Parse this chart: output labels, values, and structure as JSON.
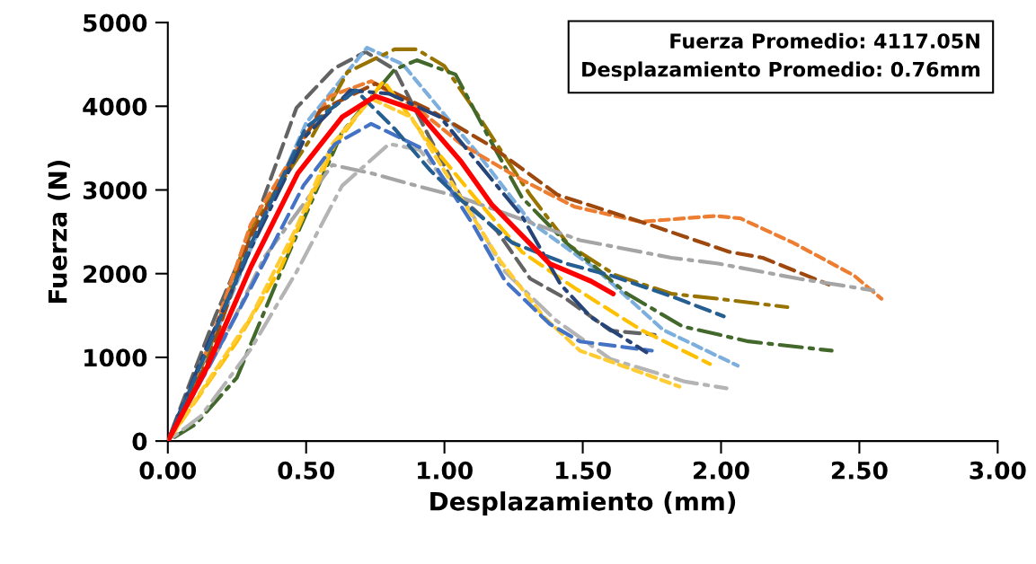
{
  "chart_data": {
    "type": "line",
    "xlabel": "Desplazamiento (mm)",
    "ylabel": "Fuerza (N)",
    "annotations": [
      "Fuerza Promedio: 4117.05N",
      "Desplazamiento Promedio: 0.76mm"
    ],
    "xlim": [
      0,
      3
    ],
    "ylim": [
      0,
      5000
    ],
    "xticks": [
      {
        "value": 0,
        "label": "0.00"
      },
      {
        "value": 0.5,
        "label": "0.50"
      },
      {
        "value": 1,
        "label": "1.00"
      },
      {
        "value": 1.5,
        "label": "1.50"
      },
      {
        "value": 2,
        "label": "2.00"
      },
      {
        "value": 2.5,
        "label": "2.50"
      },
      {
        "value": 3,
        "label": "3.00"
      }
    ],
    "yticks": [
      0,
      1000,
      2000,
      3000,
      4000,
      5000
    ],
    "grid": false,
    "legend": false,
    "marker": "none",
    "series": [
      {
        "color": "#636363",
        "line_style": "dashed",
        "x": [
          0,
          0.17,
          0.3,
          0.465,
          0.6,
          0.715,
          0.82,
          0.93,
          1.06,
          1.19,
          1.31,
          1.44,
          1.6,
          1.76
        ],
        "values": [
          0,
          1480,
          2480,
          3980,
          4450,
          4650,
          4440,
          3730,
          2910,
          2510,
          1940,
          1700,
          1320,
          1270
        ]
      },
      {
        "color": "#7cafdd",
        "line_style": "dotted",
        "x": [
          0,
          0.15,
          0.3,
          0.5,
          0.72,
          0.85,
          1.0,
          1.11,
          1.31,
          1.55,
          1.79,
          2.06
        ],
        "values": [
          0,
          1100,
          2300,
          3800,
          4700,
          4500,
          3900,
          3480,
          2620,
          2050,
          1330,
          900
        ]
      },
      {
        "color": "#997300",
        "line_style": "dashdot",
        "x": [
          0,
          0.15,
          0.3,
          0.52,
          0.65,
          0.82,
          0.9,
          1.0,
          1.11,
          1.23,
          1.31,
          1.45,
          1.62,
          1.82,
          1.99,
          2.24
        ],
        "values": [
          0,
          1100,
          2550,
          3630,
          4410,
          4680,
          4680,
          4480,
          3950,
          3340,
          2940,
          2340,
          1980,
          1760,
          1700,
          1600
        ]
      },
      {
        "color": "#43682b",
        "line_style": "dashdot",
        "x": [
          0,
          0.1,
          0.25,
          0.43,
          0.63,
          0.82,
          0.9,
          1.04,
          1.16,
          1.28,
          1.44,
          1.66,
          1.86,
          2.1,
          2.4
        ],
        "values": [
          0,
          200,
          760,
          2190,
          3690,
          4440,
          4550,
          4380,
          3630,
          2910,
          2370,
          1760,
          1370,
          1190,
          1080
        ]
      },
      {
        "color": "#ed7d31",
        "line_style": "dotted",
        "x": [
          0,
          0.15,
          0.3,
          0.585,
          0.735,
          0.9,
          1.06,
          1.28,
          1.47,
          1.71,
          1.98,
          2.07,
          2.26,
          2.48,
          2.58
        ],
        "values": [
          0,
          1150,
          2590,
          4120,
          4300,
          3980,
          3550,
          3120,
          2800,
          2620,
          2690,
          2660,
          2370,
          1980,
          1700
        ]
      },
      {
        "color": "#9e480e",
        "line_style": "dashed",
        "x": [
          0,
          0.15,
          0.3,
          0.55,
          0.75,
          0.95,
          1.17,
          1.41,
          1.71,
          2.03,
          2.15,
          2.39
        ],
        "values": [
          0,
          1000,
          2450,
          3950,
          4270,
          3950,
          3520,
          2940,
          2620,
          2260,
          2190,
          1870
        ]
      },
      {
        "color": "#a5a5a5",
        "line_style": "dashdot",
        "x": [
          0,
          0.2,
          0.35,
          0.595,
          0.735,
          0.9,
          1.06,
          1.49,
          1.82,
          1.99,
          2.28,
          2.55
        ],
        "values": [
          0,
          1200,
          2200,
          3300,
          3200,
          3050,
          2910,
          2400,
          2190,
          2120,
          1940,
          1800
        ]
      },
      {
        "color": "#b4b4b4",
        "line_style": "dashdot",
        "x": [
          0,
          0.12,
          0.3,
          0.465,
          0.63,
          0.8,
          0.91,
          1.09,
          1.22,
          1.4,
          1.6,
          1.87,
          2.02
        ],
        "values": [
          0,
          300,
          1100,
          2020,
          3050,
          3550,
          3480,
          2770,
          2020,
          1450,
          980,
          710,
          630
        ]
      },
      {
        "color": "#ffc000",
        "line_style": "dashed",
        "x": [
          0,
          0.25,
          0.41,
          0.6,
          0.78,
          0.93,
          1.11,
          1.28,
          1.47,
          1.71,
          1.96
        ],
        "values": [
          0,
          1190,
          2080,
          3520,
          4300,
          3630,
          2910,
          2260,
          1830,
          1330,
          920
        ]
      },
      {
        "color": "#ffcc33",
        "line_style": "dotted",
        "x": [
          0,
          0.3,
          0.465,
          0.595,
          0.735,
          0.88,
          1.02,
          1.08,
          1.2,
          1.36,
          1.49,
          1.71,
          1.85
        ],
        "values": [
          0,
          1480,
          2550,
          3550,
          4090,
          3870,
          3120,
          2800,
          2160,
          1480,
          1080,
          820,
          650
        ]
      },
      {
        "color": "#4472c4",
        "line_style": "dashed",
        "x": [
          0,
          0.15,
          0.3,
          0.49,
          0.605,
          0.735,
          0.93,
          1.11,
          1.22,
          1.38,
          1.49,
          1.75
        ],
        "values": [
          0,
          900,
          1830,
          3050,
          3550,
          3790,
          3480,
          2550,
          1910,
          1400,
          1190,
          1080
        ]
      },
      {
        "color": "#264478",
        "line_style": "dashdot",
        "x": [
          0,
          0.15,
          0.3,
          0.5,
          0.66,
          0.8,
          0.985,
          1.28,
          1.42,
          1.53,
          1.73
        ],
        "values": [
          0,
          1200,
          2300,
          3650,
          4190,
          4150,
          3870,
          2690,
          1870,
          1480,
          1060
        ]
      },
      {
        "color": "#255e91",
        "line_style": "dashed",
        "x": [
          0,
          0.15,
          0.3,
          0.5,
          0.68,
          0.82,
          0.95,
          1.06,
          1.245,
          1.44,
          1.6,
          1.82,
          2.01
        ],
        "values": [
          0,
          1150,
          2350,
          3750,
          4190,
          3730,
          3230,
          2880,
          2370,
          2120,
          1980,
          1730,
          1490
        ]
      },
      {
        "color": "#ff0000",
        "line_style": "solid",
        "x": [
          0,
          0.14,
          0.3,
          0.47,
          0.63,
          0.75,
          0.9,
          1.06,
          1.17,
          1.38,
          1.53,
          1.61
        ],
        "values": [
          0,
          870,
          2080,
          3200,
          3870,
          4120,
          3950,
          3340,
          2830,
          2120,
          1910,
          1760
        ]
      }
    ]
  }
}
